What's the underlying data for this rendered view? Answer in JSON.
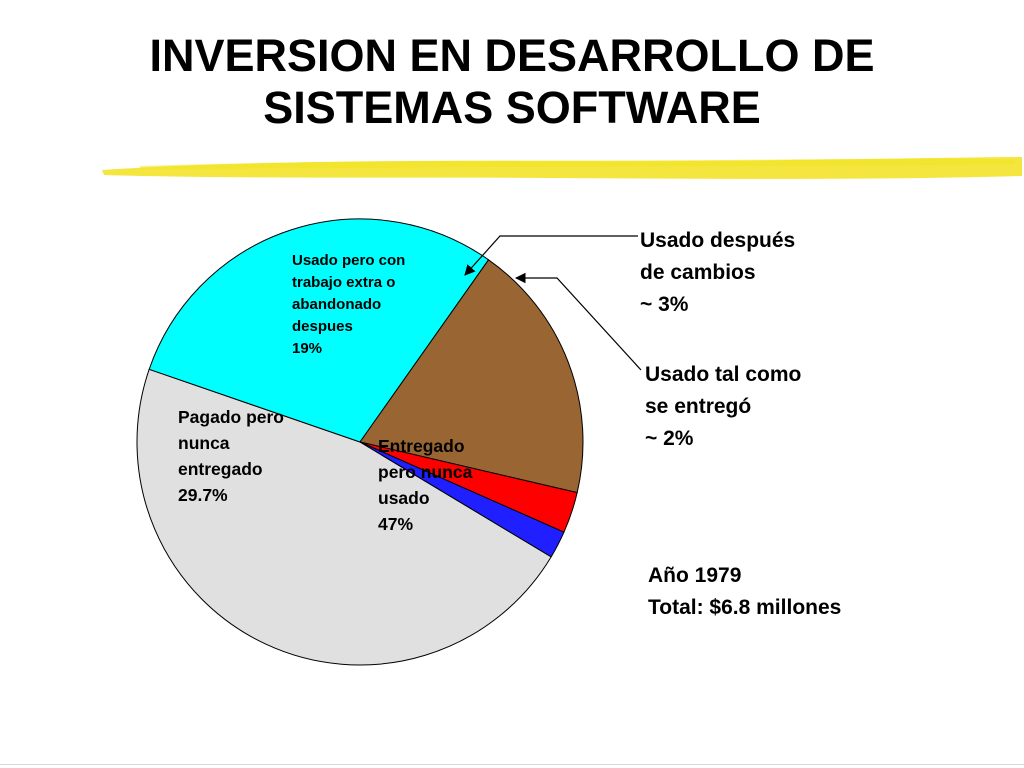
{
  "title": {
    "line1": "INVERSION EN DESARROLLO DE",
    "line2": "SISTEMAS SOFTWARE"
  },
  "accent_color": "#f2e21c",
  "chart_data": {
    "type": "pie",
    "start_angle_deg": 31,
    "direction": "counterclockwise",
    "slices": [
      {
        "key": "entregado",
        "label": [
          "Entregado",
          "pero nunca",
          "usado",
          "47%"
        ],
        "value": 47,
        "color": "#e0e0e0"
      },
      {
        "key": "pagado",
        "label": [
          "Pagado pero",
          "nunca",
          "entregado",
          "29.7%"
        ],
        "value": 29.7,
        "color": "#00ffff"
      },
      {
        "key": "usado-extra",
        "label": [
          "Usado pero con",
          "trabajo extra o",
          "abandonado",
          "despues",
          "19%"
        ],
        "value": 19,
        "color": "#996633"
      },
      {
        "key": "cambios",
        "label": [
          "Usado después",
          "de cambios",
          "~ 3%"
        ],
        "value": 3,
        "color": "#ff0000"
      },
      {
        "key": "tal-como",
        "label": [
          "Usado tal como",
          "se entregó",
          "~ 2%"
        ],
        "value": 2,
        "color": "#1f1fff"
      }
    ],
    "annotation": [
      "Año 1979",
      "Total: $6.8 millones"
    ]
  }
}
